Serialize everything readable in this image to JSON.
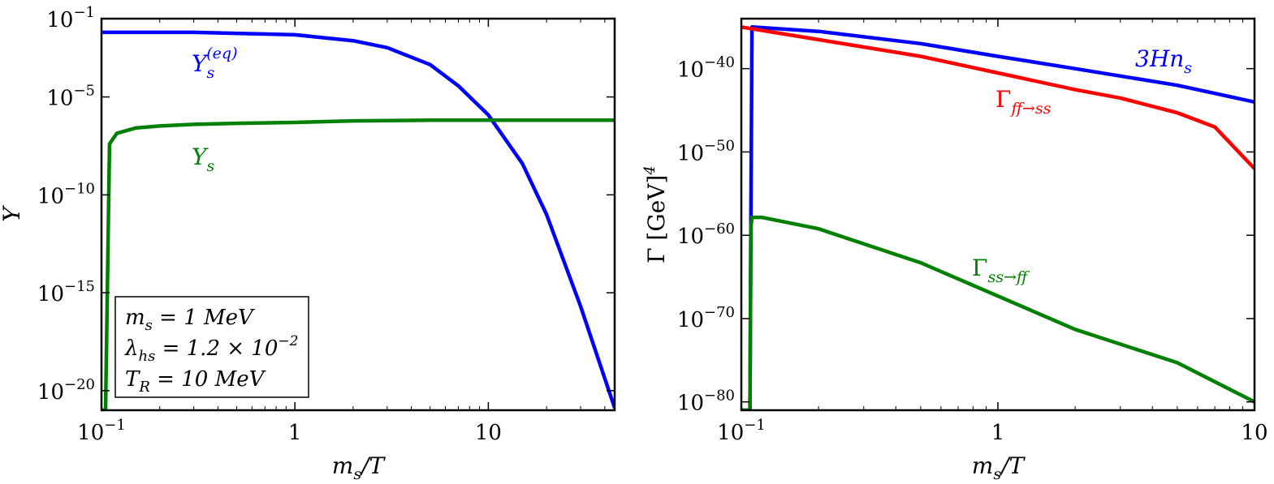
{
  "chart_data": [
    {
      "type": "line",
      "xscale": "log",
      "yscale": "log",
      "xlim": [
        0.1,
        45
      ],
      "ylim": [
        1e-21,
        0.1
      ],
      "xlabel": "m_s/T",
      "ylabel": "Y",
      "xticks": [
        {
          "value": 0.1,
          "label": "10",
          "exp": "−1"
        },
        {
          "value": 1,
          "label": "1",
          "exp": ""
        },
        {
          "value": 10,
          "label": "10",
          "exp": ""
        }
      ],
      "yticks": [
        {
          "value": 0.1,
          "label": "10",
          "exp": "−1"
        },
        {
          "value": 1e-05,
          "label": "10",
          "exp": "−5"
        },
        {
          "value": 1e-10,
          "label": "10",
          "exp": "−10"
        },
        {
          "value": 1e-15,
          "label": "10",
          "exp": "−15"
        },
        {
          "value": 1e-20,
          "label": "10",
          "exp": "−20"
        }
      ],
      "grid": false,
      "series": [
        {
          "name": "Y_s^(eq)",
          "label_main": "Y",
          "label_sub": "s",
          "label_sup": "(eq)",
          "color": "#0000ff",
          "x": [
            0.1,
            0.3,
            1,
            2,
            3,
            5,
            7,
            10,
            15,
            20,
            30,
            45
          ],
          "y": [
            0.02,
            0.02,
            0.015,
            0.0075,
            0.0033,
            0.00045,
            3.7e-05,
            1.2e-06,
            4e-09,
            1e-11,
            2e-16,
            1.3e-21
          ]
        },
        {
          "name": "Y_s",
          "label_main": "Y",
          "label_sub": "s",
          "label_sup": "",
          "color": "#008000",
          "x": [
            0.1,
            0.105,
            0.11,
            0.12,
            0.15,
            0.2,
            0.3,
            0.5,
            1,
            2,
            5,
            10,
            20,
            45
          ],
          "y": [
            1e-21,
            1e-21,
            4e-08,
            1.4e-07,
            2.6e-07,
            3.3e-07,
            4e-07,
            4.5e-07,
            5e-07,
            6e-07,
            6.5e-07,
            6.5e-07,
            6.5e-07,
            6.5e-07
          ]
        }
      ],
      "annotations": {
        "legend_lines": [
          {
            "main": "m",
            "sub": "s",
            "rest": " = 1 MeV"
          },
          {
            "main": "λ",
            "sub": "hs",
            "rest": " = 1.2 × 10",
            "sup": "−2"
          },
          {
            "main": "T",
            "sub": "R",
            "rest": " = 10 MeV"
          }
        ],
        "legend_placement": "bottom-left"
      }
    },
    {
      "type": "line",
      "xscale": "log",
      "yscale": "log",
      "xlim": [
        0.1,
        10
      ],
      "ylim": [
        1e-81,
        1e-34
      ],
      "xlabel": "m_s/T",
      "ylabel": "Γ [GeV]^4",
      "xticks": [
        {
          "value": 0.1,
          "label": "10",
          "exp": "−1"
        },
        {
          "value": 1,
          "label": "1",
          "exp": ""
        },
        {
          "value": 10,
          "label": "10",
          "exp": ""
        }
      ],
      "yticks": [
        {
          "value": 1e-40,
          "label": "10",
          "exp": "−40"
        },
        {
          "value": 1e-50,
          "label": "10",
          "exp": "−50"
        },
        {
          "value": 1e-60,
          "label": "10",
          "exp": "−60"
        },
        {
          "value": 1e-70,
          "label": "10",
          "exp": "−70"
        },
        {
          "value": 1e-80,
          "label": "10",
          "exp": "−80"
        }
      ],
      "grid": false,
      "series": [
        {
          "name": "3Hn_s",
          "label_main": "3Hn",
          "label_sub": "s",
          "color": "#0000ff",
          "x": [
            0.1,
            0.108,
            0.109,
            0.11,
            0.2,
            0.5,
            1,
            2,
            5,
            10
          ],
          "y": [
            1e-81,
            1e-81,
            3e-58,
            1e-35,
            3e-36,
            1e-37,
            3e-39,
            1e-40,
            1e-42,
            1e-44
          ]
        },
        {
          "name": "Γ_ff→ss",
          "label_main": "Γ",
          "label_sub": "ff→ss",
          "color": "#ff0000",
          "x": [
            0.1,
            0.2,
            0.5,
            1,
            2,
            3,
            5,
            7,
            10
          ],
          "y": [
            1e-35,
            3e-37,
            3e-39,
            3e-41,
            3e-43,
            3e-44,
            5e-46,
            1e-47,
            1e-52
          ]
        },
        {
          "name": "Γ_ss→ff",
          "label_main": "Γ",
          "label_sub": "ss→ff",
          "color": "#008000",
          "x": [
            0.1,
            0.108,
            0.109,
            0.11,
            0.12,
            0.2,
            0.5,
            1,
            2,
            5,
            10
          ],
          "y": [
            1e-81,
            1e-81,
            1e-59,
            1.4e-58,
            1.4e-58,
            6e-60,
            5e-64,
            5e-68,
            5e-72,
            5e-76,
            1e-80
          ]
        }
      ]
    }
  ]
}
